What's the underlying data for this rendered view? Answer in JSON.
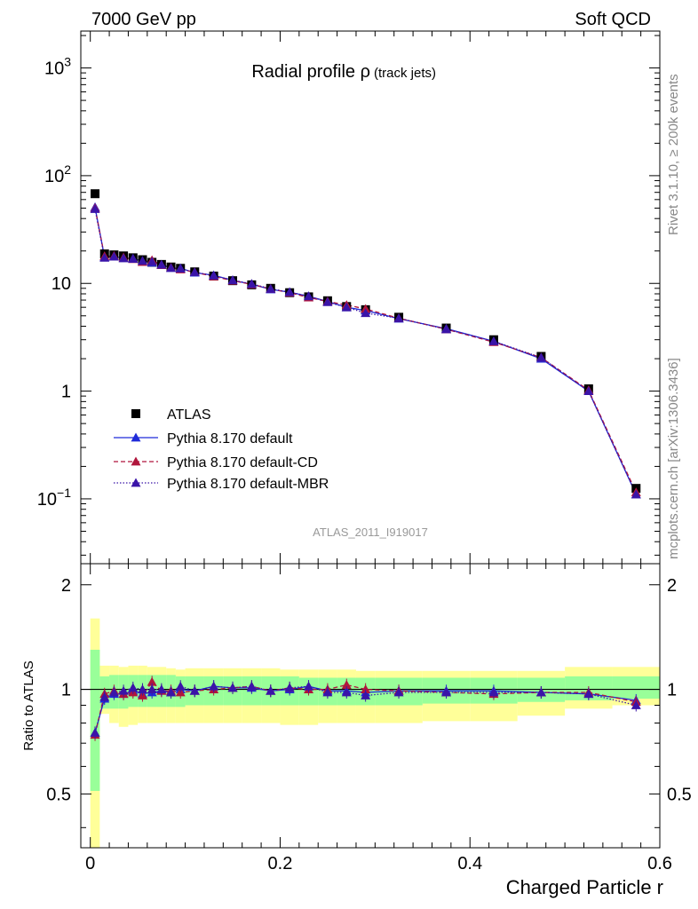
{
  "header": {
    "left": "7000 GeV pp",
    "right": "Soft QCD"
  },
  "side_text": {
    "rivet": "Rivet 3.1.10, ≥ 200k events",
    "source": "mcplots.cern.ch [arXiv:1306.3436]"
  },
  "chart_data": [
    {
      "type": "scatter",
      "title": "Radial profile ρ",
      "title_suffix": "(track jets)",
      "watermark": "ATLAS_2011_I919017",
      "yscale": "log",
      "xlim": [
        -0.01,
        0.6
      ],
      "ylim": [
        0.025,
        2200
      ],
      "y_ticks": [
        {
          "v": 0.1,
          "base": "10",
          "exp": "−1"
        },
        {
          "v": 1,
          "base": "1",
          "exp": ""
        },
        {
          "v": 10,
          "base": "10",
          "exp": ""
        },
        {
          "v": 100,
          "base": "10",
          "exp": "2"
        },
        {
          "v": 1000,
          "base": "10",
          "exp": "3"
        }
      ],
      "legend_position": "lower-left",
      "x": [
        0.005,
        0.015,
        0.025,
        0.035,
        0.045,
        0.055,
        0.065,
        0.075,
        0.085,
        0.095,
        0.11,
        0.13,
        0.15,
        0.17,
        0.19,
        0.21,
        0.23,
        0.25,
        0.27,
        0.29,
        0.325,
        0.375,
        0.425,
        0.475,
        0.525,
        0.575
      ],
      "series": [
        {
          "name": "ATLAS",
          "style": "data",
          "color": "#000000",
          "values": [
            68,
            18.8,
            18.4,
            18.0,
            17.3,
            16.6,
            15.7,
            15.0,
            14.2,
            13.8,
            12.8,
            11.7,
            10.6,
            9.7,
            9.0,
            8.2,
            7.5,
            6.9,
            6.1,
            5.7,
            4.85,
            3.85,
            3.0,
            2.1,
            1.05,
            0.125
          ]
        },
        {
          "name": "Pythia 8.170 default",
          "style": "solid",
          "color": "#1f2bd9",
          "values": [
            51,
            17.6,
            17.8,
            17.2,
            17.0,
            16.1,
            15.6,
            14.9,
            13.9,
            13.8,
            12.6,
            11.9,
            10.7,
            9.8,
            8.8,
            8.3,
            7.6,
            6.8,
            6.0,
            5.6,
            4.7,
            3.8,
            2.9,
            2.0,
            1.0,
            0.11
          ]
        },
        {
          "name": "Pythia 8.170 default-CD",
          "style": "dashed",
          "color": "#b0153c",
          "values": [
            50,
            17.9,
            18.0,
            17.4,
            16.8,
            15.8,
            16.4,
            14.8,
            14.0,
            13.5,
            12.7,
            11.6,
            10.6,
            9.8,
            8.9,
            8.2,
            7.4,
            6.8,
            6.3,
            5.8,
            4.75,
            3.75,
            2.85,
            2.05,
            1.02,
            0.115
          ]
        },
        {
          "name": "Pythia 8.170 default-MBR",
          "style": "dotted",
          "color": "#3a14a8",
          "values": [
            49,
            17.3,
            17.7,
            17.1,
            16.9,
            16.2,
            15.9,
            14.9,
            13.9,
            13.7,
            12.7,
            11.8,
            10.7,
            9.9,
            8.9,
            8.3,
            7.6,
            6.7,
            6.0,
            5.3,
            4.75,
            3.75,
            2.9,
            2.05,
            1.0,
            0.11
          ]
        }
      ]
    },
    {
      "type": "scatter",
      "xlabel": "Charged Particle r",
      "ylabel": "Ratio to ATLAS",
      "xlim": [
        -0.01,
        0.6
      ],
      "ylim": [
        0.35,
        2.3
      ],
      "x_ticks": [
        "0",
        "0.2",
        "0.4",
        "0.6"
      ],
      "x_tick_values": [
        0,
        0.2,
        0.4,
        0.6
      ],
      "y_ticks": [
        "0.5",
        "1",
        "2"
      ],
      "y_tick_values": [
        0.5,
        1,
        2
      ],
      "bands": {
        "bin_edges": [
          0.0,
          0.01,
          0.02,
          0.03,
          0.04,
          0.05,
          0.06,
          0.07,
          0.08,
          0.09,
          0.1,
          0.12,
          0.14,
          0.16,
          0.18,
          0.2,
          0.22,
          0.24,
          0.26,
          0.28,
          0.3,
          0.35,
          0.4,
          0.45,
          0.5,
          0.55,
          0.6
        ],
        "yellow_lo": [
          0.35,
          0.85,
          0.8,
          0.78,
          0.79,
          0.8,
          0.8,
          0.8,
          0.8,
          0.8,
          0.8,
          0.8,
          0.8,
          0.8,
          0.8,
          0.79,
          0.79,
          0.8,
          0.8,
          0.8,
          0.8,
          0.81,
          0.81,
          0.84,
          0.88,
          0.9
        ],
        "yellow_hi": [
          1.6,
          1.17,
          1.17,
          1.16,
          1.17,
          1.17,
          1.16,
          1.16,
          1.15,
          1.14,
          1.15,
          1.15,
          1.15,
          1.15,
          1.15,
          1.14,
          1.14,
          1.14,
          1.14,
          1.13,
          1.13,
          1.13,
          1.13,
          1.13,
          1.16,
          1.16
        ],
        "green_lo": [
          0.51,
          0.88,
          0.88,
          0.88,
          0.89,
          0.89,
          0.89,
          0.89,
          0.89,
          0.89,
          0.9,
          0.9,
          0.9,
          0.9,
          0.9,
          0.9,
          0.9,
          0.9,
          0.9,
          0.9,
          0.9,
          0.91,
          0.91,
          0.92,
          0.93,
          0.94
        ],
        "green_hi": [
          1.3,
          1.09,
          1.1,
          1.1,
          1.1,
          1.1,
          1.1,
          1.1,
          1.1,
          1.09,
          1.09,
          1.09,
          1.09,
          1.09,
          1.09,
          1.09,
          1.08,
          1.08,
          1.08,
          1.08,
          1.08,
          1.08,
          1.08,
          1.08,
          1.09,
          1.09
        ]
      },
      "x": [
        0.005,
        0.015,
        0.025,
        0.035,
        0.045,
        0.055,
        0.065,
        0.075,
        0.085,
        0.095,
        0.11,
        0.13,
        0.15,
        0.17,
        0.19,
        0.21,
        0.23,
        0.25,
        0.27,
        0.29,
        0.325,
        0.375,
        0.425,
        0.475,
        0.525,
        0.575
      ],
      "series": [
        {
          "name": "Pythia 8.170 default",
          "style": "solid",
          "color": "#1f2bd9",
          "values": [
            0.75,
            0.94,
            0.97,
            0.97,
            0.99,
            0.97,
            0.98,
            0.99,
            0.98,
            1.0,
            0.99,
            1.02,
            1.01,
            1.01,
            0.99,
            1.0,
            1.02,
            0.99,
            0.99,
            0.98,
            0.99,
            0.99,
            0.99,
            0.98,
            0.97,
            0.93
          ]
        },
        {
          "name": "Pythia 8.170 default-CD",
          "style": "dashed",
          "color": "#b0153c",
          "values": [
            0.74,
            0.97,
            0.99,
            0.97,
            0.98,
            0.96,
            1.05,
            0.99,
            0.99,
            0.98,
            0.99,
            1.0,
            1.01,
            1.02,
            0.99,
            1.01,
            1.0,
            1.0,
            1.03,
            1.0,
            0.99,
            0.98,
            0.97,
            0.98,
            0.98,
            0.92
          ]
        },
        {
          "name": "Pythia 8.170 default-MBR",
          "style": "dotted",
          "color": "#3a14a8",
          "values": [
            0.75,
            0.95,
            0.98,
            0.99,
            1.01,
            1.0,
            1.0,
            1.0,
            0.98,
            1.02,
            0.99,
            1.02,
            1.01,
            1.02,
            0.99,
            1.01,
            1.02,
            0.98,
            0.98,
            0.96,
            0.98,
            0.98,
            0.98,
            0.98,
            0.97,
            0.9
          ]
        }
      ]
    }
  ]
}
